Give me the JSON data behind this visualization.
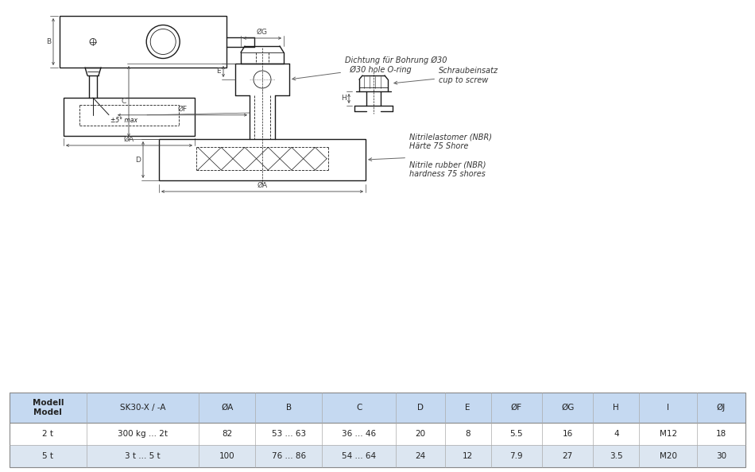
{
  "bg_color": "#ffffff",
  "table_header_color": "#c5d9f1",
  "table_row1_color": "#ffffff",
  "table_row2_color": "#dce6f1",
  "table_cols": [
    "Modell\nModel",
    "SK30-X / -A",
    "ØA",
    "B",
    "C",
    "D",
    "E",
    "ØF",
    "ØG",
    "H",
    "I",
    "ØJ"
  ],
  "table_row1": [
    "2 t",
    "300 kg ... 2t",
    "82",
    "53 ... 63",
    "36 ... 46",
    "20",
    "8",
    "5.5",
    "16",
    "4",
    "M12",
    "18"
  ],
  "table_row2": [
    "5 t",
    "3 t ... 5 t",
    "100",
    "76 ... 86",
    "54 ... 64",
    "24",
    "12",
    "7.9",
    "27",
    "3.5",
    "M20",
    "30"
  ],
  "lc": "#1a1a1a",
  "dc": "#444444"
}
